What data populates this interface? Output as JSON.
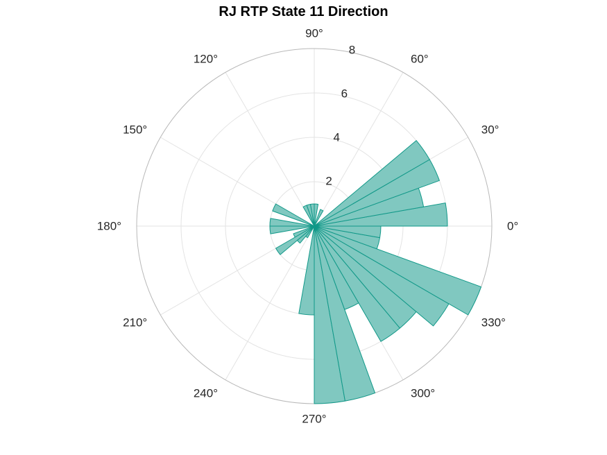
{
  "chart_data": {
    "type": "polar-histogram",
    "title": "RJ  RTP State 11 Direction",
    "theta_ticks_deg": [
      0,
      30,
      60,
      90,
      120,
      150,
      180,
      210,
      240,
      270,
      300,
      330
    ],
    "theta_tick_labels": [
      "0°",
      "30°",
      "60°",
      "90°",
      "120°",
      "150°",
      "180°",
      "210°",
      "240°",
      "270°",
      "300°",
      "330°"
    ],
    "r_ticks": [
      2,
      4,
      6,
      8
    ],
    "r_tick_labels": [
      "2",
      "4",
      "6",
      "8"
    ],
    "rlim": [
      0,
      8
    ],
    "bin_width_deg": 10,
    "bins": [
      {
        "start_deg": 0,
        "end_deg": 10,
        "value": 6
      },
      {
        "start_deg": 10,
        "end_deg": 20,
        "value": 5
      },
      {
        "start_deg": 20,
        "end_deg": 30,
        "value": 6
      },
      {
        "start_deg": 30,
        "end_deg": 40,
        "value": 6
      },
      {
        "start_deg": 40,
        "end_deg": 50,
        "value": 0
      },
      {
        "start_deg": 50,
        "end_deg": 60,
        "value": 0
      },
      {
        "start_deg": 60,
        "end_deg": 70,
        "value": 0.8
      },
      {
        "start_deg": 70,
        "end_deg": 80,
        "value": 0
      },
      {
        "start_deg": 80,
        "end_deg": 90,
        "value": 1
      },
      {
        "start_deg": 90,
        "end_deg": 100,
        "value": 1
      },
      {
        "start_deg": 100,
        "end_deg": 110,
        "value": 1
      },
      {
        "start_deg": 110,
        "end_deg": 120,
        "value": 1
      },
      {
        "start_deg": 120,
        "end_deg": 130,
        "value": 0
      },
      {
        "start_deg": 130,
        "end_deg": 140,
        "value": 0
      },
      {
        "start_deg": 140,
        "end_deg": 150,
        "value": 0
      },
      {
        "start_deg": 150,
        "end_deg": 160,
        "value": 2
      },
      {
        "start_deg": 160,
        "end_deg": 170,
        "value": 0
      },
      {
        "start_deg": 170,
        "end_deg": 180,
        "value": 2
      },
      {
        "start_deg": 180,
        "end_deg": 190,
        "value": 2
      },
      {
        "start_deg": 190,
        "end_deg": 200,
        "value": 0
      },
      {
        "start_deg": 200,
        "end_deg": 210,
        "value": 1
      },
      {
        "start_deg": 210,
        "end_deg": 220,
        "value": 2
      },
      {
        "start_deg": 220,
        "end_deg": 230,
        "value": 1
      },
      {
        "start_deg": 230,
        "end_deg": 240,
        "value": 0.6
      },
      {
        "start_deg": 240,
        "end_deg": 250,
        "value": 0
      },
      {
        "start_deg": 250,
        "end_deg": 260,
        "value": 0
      },
      {
        "start_deg": 260,
        "end_deg": 270,
        "value": 4
      },
      {
        "start_deg": 270,
        "end_deg": 280,
        "value": 8
      },
      {
        "start_deg": 280,
        "end_deg": 290,
        "value": 8
      },
      {
        "start_deg": 290,
        "end_deg": 300,
        "value": 4
      },
      {
        "start_deg": 300,
        "end_deg": 310,
        "value": 6
      },
      {
        "start_deg": 310,
        "end_deg": 320,
        "value": 6
      },
      {
        "start_deg": 320,
        "end_deg": 330,
        "value": 7
      },
      {
        "start_deg": 330,
        "end_deg": 340,
        "value": 8
      },
      {
        "start_deg": 340,
        "end_deg": 350,
        "value": 3
      },
      {
        "start_deg": 350,
        "end_deg": 360,
        "value": 3
      }
    ],
    "colors": {
      "bar_fill": "#80c8c0",
      "bar_edge": "#109888",
      "grid": "#e3e3e3",
      "outer_ring": "#b8b8b8",
      "tick_text": "#262626"
    },
    "grid": true
  }
}
